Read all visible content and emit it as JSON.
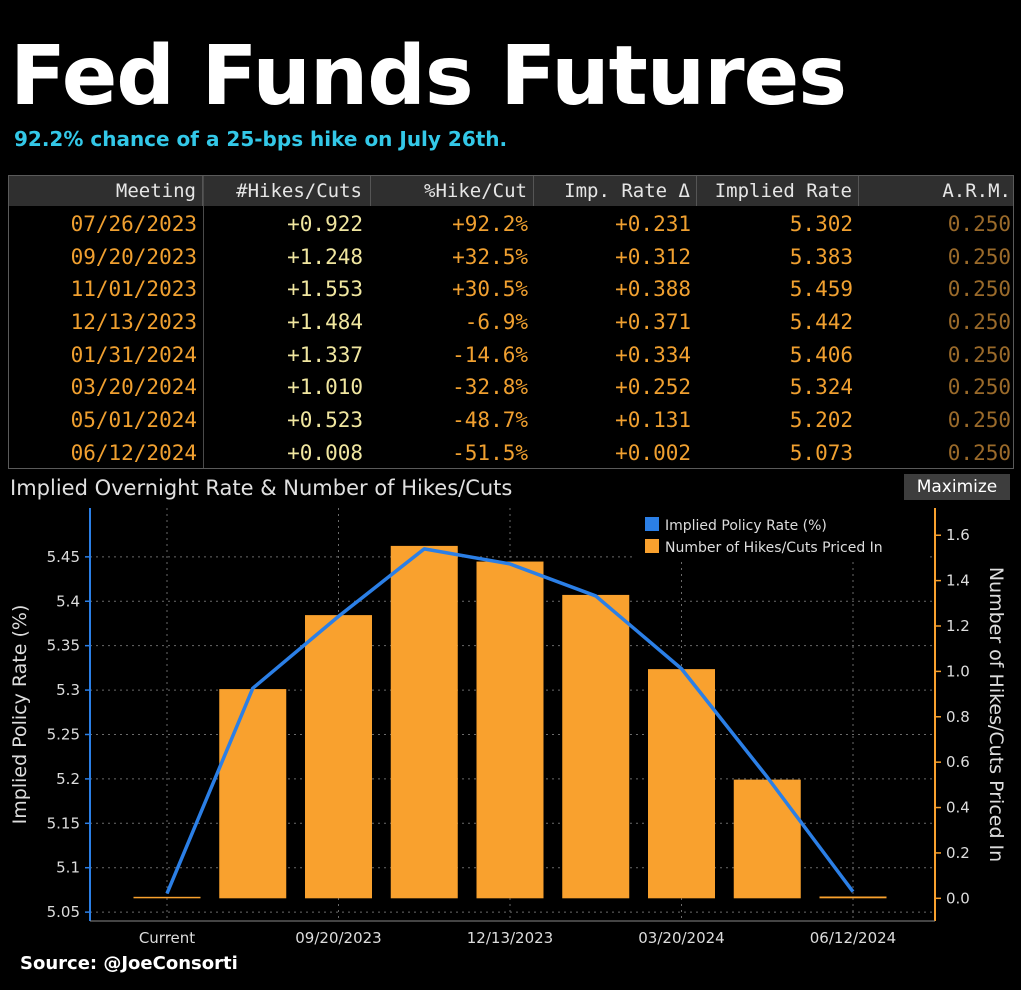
{
  "header": {
    "title": "Fed Funds Futures",
    "subtitle": "92.2% chance of a 25-bps hike on July 26th."
  },
  "table": {
    "columns": [
      "Meeting",
      "#Hikes/Cuts",
      "%Hike/Cut",
      "Imp. Rate Δ",
      "Implied Rate",
      "A.R.M."
    ],
    "rows": [
      [
        "07/26/2023",
        "+0.922",
        "+92.2%",
        "+0.231",
        "5.302",
        "0.250"
      ],
      [
        "09/20/2023",
        "+1.248",
        "+32.5%",
        "+0.312",
        "5.383",
        "0.250"
      ],
      [
        "11/01/2023",
        "+1.553",
        "+30.5%",
        "+0.388",
        "5.459",
        "0.250"
      ],
      [
        "12/13/2023",
        "+1.484",
        "-6.9%",
        "+0.371",
        "5.442",
        "0.250"
      ],
      [
        "01/31/2024",
        "+1.337",
        "-14.6%",
        "+0.334",
        "5.406",
        "0.250"
      ],
      [
        "03/20/2024",
        "+1.010",
        "-32.8%",
        "+0.252",
        "5.324",
        "0.250"
      ],
      [
        "05/01/2024",
        "+0.523",
        "-48.7%",
        "+0.131",
        "5.202",
        "0.250"
      ],
      [
        "06/12/2024",
        "+0.008",
        "-51.5%",
        "+0.002",
        "5.073",
        "0.250"
      ]
    ]
  },
  "chart_header": {
    "title": "Implied Overnight Rate & Number of Hikes/Cuts",
    "maximize_label": "Maximize"
  },
  "source": "Source: @JoeConsorti",
  "chart_data": {
    "type": "bar",
    "title": "Implied Overnight Rate & Number of Hikes/Cuts",
    "categories": [
      "Current",
      "07/26/2023",
      "09/20/2023",
      "11/01/2023",
      "12/13/2023",
      "01/31/2024",
      "03/20/2024",
      "05/01/2024",
      "06/12/2024"
    ],
    "x_tick_labels": [
      "Current",
      "09/20/2023",
      "12/13/2023",
      "03/20/2024",
      "06/12/2024"
    ],
    "x_tick_label_indices": [
      0,
      2,
      4,
      6,
      8
    ],
    "series": [
      {
        "name": "Implied Policy Rate (%)",
        "type": "line",
        "axis": "left",
        "color": "#2b7fe6",
        "values": [
          5.071,
          5.302,
          5.383,
          5.459,
          5.442,
          5.406,
          5.324,
          5.202,
          5.073
        ]
      },
      {
        "name": "Number of Hikes/Cuts Priced In",
        "type": "bar",
        "axis": "right",
        "color": "#f9a12e",
        "values": [
          0,
          0.922,
          1.248,
          1.553,
          1.484,
          1.337,
          1.01,
          0.523,
          0.008
        ]
      }
    ],
    "ylabel": "Implied Policy Rate (%)",
    "y2label": "Number of Hikes/Cuts Priced In",
    "ylim": [
      5.04,
      5.505
    ],
    "y2lim": [
      -0.1,
      1.72
    ],
    "yticks": [
      "5.05",
      "5.1",
      "5.15",
      "5.2",
      "5.25",
      "5.3",
      "5.35",
      "5.4",
      "5.45"
    ],
    "y2ticks": [
      "0.0",
      "0.2",
      "0.4",
      "0.6",
      "0.8",
      "1.0",
      "1.2",
      "1.4",
      "1.6"
    ],
    "grid": true,
    "legend_position": "top-right",
    "legend_labels": [
      "Implied Policy Rate (%)",
      "Number of Hikes/Cuts Priced In"
    ]
  }
}
